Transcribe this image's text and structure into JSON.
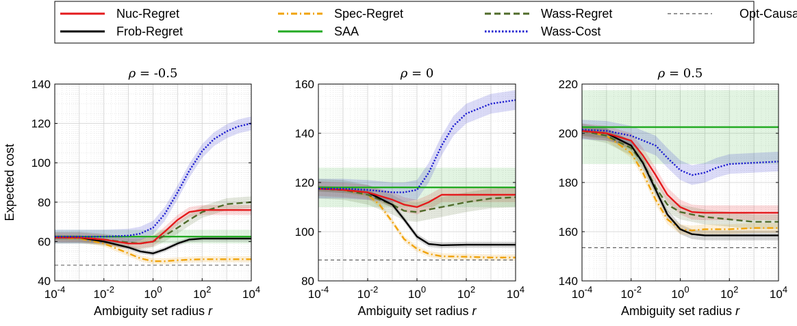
{
  "chart_data": {
    "type": "line",
    "legend": {
      "placement": "top",
      "entries": [
        {
          "name": "Nuc-Regret",
          "color": "#e41a1c",
          "dash": "solid"
        },
        {
          "name": "Spec-Regret",
          "color": "#f0a30a",
          "dash": "dashdot"
        },
        {
          "name": "Wass-Regret",
          "color": "#4f6b2a",
          "dash": "dashed"
        },
        {
          "name": "Opt-Causal",
          "color": "#555555",
          "dash": "thin-dashed"
        },
        {
          "name": "Frob-Regret",
          "color": "#000000",
          "dash": "solid"
        },
        {
          "name": "SAA",
          "color": "#22aa22",
          "dash": "solid"
        },
        {
          "name": "Wass-Cost",
          "color": "#1f1fd0",
          "dash": "dotted"
        }
      ]
    },
    "xlabel": "Ambiguity set radius r",
    "ylabel": "Expected cost",
    "x_scale": "log",
    "xlim": [
      0.0001,
      10000
    ],
    "x_ticks": [
      "10-4",
      "10-2",
      "100",
      "102",
      "104"
    ],
    "grid": true,
    "panels": [
      {
        "title": "ρ = -0.5",
        "ylim": [
          40,
          140
        ],
        "y_ticks": [
          40,
          60,
          80,
          100,
          120,
          140
        ],
        "series": [
          {
            "name": "Nuc-Regret",
            "x": [
              0.0001,
              0.001,
              0.01,
              0.1,
              0.3,
              1,
              3,
              10,
              30,
              100,
              1000,
              10000
            ],
            "y": [
              62,
              62,
              61,
              59,
              59,
              60,
              65,
              71,
              75,
              76,
              76,
              76
            ],
            "band": 2.5
          },
          {
            "name": "Frob-Regret",
            "x": [
              0.0001,
              0.001,
              0.01,
              0.1,
              0.3,
              1,
              3,
              10,
              30,
              100,
              1000,
              10000
            ],
            "y": [
              62,
              62,
              60,
              57,
              55,
              54,
              56,
              59,
              61,
              61.5,
              61.5,
              61.5
            ],
            "band": 1.2
          },
          {
            "name": "Spec-Regret",
            "x": [
              0.0001,
              0.001,
              0.01,
              0.1,
              0.3,
              1,
              3,
              10,
              30,
              100,
              1000,
              10000
            ],
            "y": [
              62,
              61.5,
              59,
              54,
              51.5,
              50,
              50,
              50.5,
              50.8,
              51,
              51,
              51
            ],
            "band": 1.5
          },
          {
            "name": "SAA",
            "x": [
              0.0001,
              10000
            ],
            "y": [
              62.5,
              62.5
            ],
            "band": 3.5
          },
          {
            "name": "Wass-Regret",
            "x": [
              0.0001,
              0.001,
              0.01,
              0.1,
              0.3,
              1,
              3,
              10,
              30,
              100,
              1000,
              10000
            ],
            "y": [
              62,
              62,
              61,
              59.5,
              59,
              60,
              63,
              67,
              71,
              75,
              79,
              80
            ],
            "band": 3
          },
          {
            "name": "Wass-Cost",
            "x": [
              0.0001,
              0.001,
              0.01,
              0.1,
              0.3,
              1,
              3,
              10,
              30,
              100,
              300,
              1000,
              3000,
              10000
            ],
            "y": [
              62.5,
              62.5,
              62.5,
              63,
              64,
              67,
              74,
              85,
              96,
              106,
              112,
              116,
              118.5,
              120
            ],
            "band": 3.5
          },
          {
            "name": "Opt-Causal",
            "x": [
              0.0001,
              10000
            ],
            "y": [
              48,
              48
            ],
            "band": 0
          }
        ]
      },
      {
        "title": "ρ = 0",
        "ylim": [
          80,
          160
        ],
        "y_ticks": [
          80,
          100,
          120,
          140,
          160
        ],
        "series": [
          {
            "name": "Nuc-Regret",
            "x": [
              0.0001,
              0.001,
              0.01,
              0.1,
              0.3,
              1,
              3,
              10,
              100,
              1000,
              10000
            ],
            "y": [
              117.5,
              117,
              116,
              113,
              111,
              110,
              112,
              115,
              115,
              115,
              115
            ],
            "band": 3
          },
          {
            "name": "Frob-Regret",
            "x": [
              0.0001,
              0.001,
              0.01,
              0.1,
              0.3,
              1,
              3,
              10,
              100,
              1000,
              10000
            ],
            "y": [
              117.5,
              117,
              116,
              111,
              105,
              98,
              95,
              94.5,
              94.7,
              94.7,
              94.7
            ],
            "band": 1.2
          },
          {
            "name": "Spec-Regret",
            "x": [
              0.0001,
              0.001,
              0.01,
              0.03,
              0.1,
              0.3,
              1,
              3,
              10,
              100,
              1000,
              10000
            ],
            "y": [
              117.5,
              117,
              115,
              111,
              104,
              97,
              93,
              91,
              90,
              89.8,
              89.5,
              89.5
            ],
            "band": 1.2
          },
          {
            "name": "SAA",
            "x": [
              0.0001,
              10000
            ],
            "y": [
              118,
              118
            ],
            "band": 8
          },
          {
            "name": "Wass-Regret",
            "x": [
              0.0001,
              0.001,
              0.01,
              0.1,
              0.3,
              1,
              3,
              10,
              100,
              1000,
              10000
            ],
            "y": [
              117.5,
              117,
              115,
              111,
              108.5,
              108,
              109,
              110,
              112,
              113.5,
              114
            ],
            "band": 4
          },
          {
            "name": "Wass-Cost",
            "x": [
              0.0001,
              0.001,
              0.01,
              0.1,
              0.3,
              1,
              3,
              10,
              30,
              100,
              1000,
              10000
            ],
            "y": [
              117.5,
              117.5,
              117,
              116,
              116,
              117,
              124,
              135,
              143,
              148,
              152,
              153.5
            ],
            "band": 4
          },
          {
            "name": "Opt-Causal",
            "x": [
              0.0001,
              10000
            ],
            "y": [
              88.5,
              88.5
            ],
            "band": 0
          }
        ]
      },
      {
        "title": "ρ = 0.5",
        "ylim": [
          140,
          220
        ],
        "y_ticks": [
          140,
          160,
          180,
          200,
          220
        ],
        "series": [
          {
            "name": "Nuc-Regret",
            "x": [
              0.0001,
              0.001,
              0.01,
              0.03,
              0.1,
              0.3,
              1,
              3,
              10,
              100,
              1000,
              10000
            ],
            "y": [
              201,
              200,
              197,
              191,
              183,
              175,
              170,
              168,
              167.7,
              167.7,
              167.7,
              167.7
            ],
            "band": 3
          },
          {
            "name": "Frob-Regret",
            "x": [
              0.0001,
              0.001,
              0.01,
              0.03,
              0.1,
              0.3,
              1,
              3,
              10,
              100,
              1000,
              10000
            ],
            "y": [
              201,
              200,
              195,
              188,
              177,
              167,
              161,
              159,
              158.5,
              158.5,
              158.5,
              158.5
            ],
            "band": 2
          },
          {
            "name": "Spec-Regret",
            "x": [
              0.0001,
              0.001,
              0.01,
              0.03,
              0.1,
              0.3,
              1,
              3,
              10,
              100,
              1000,
              10000
            ],
            "y": [
              201,
              199,
              192,
              184,
              173,
              165,
              161,
              160.5,
              161,
              161,
              161.5,
              161.5
            ],
            "band": 2
          },
          {
            "name": "SAA",
            "x": [
              0.0001,
              10000
            ],
            "y": [
              202.5,
              202.5
            ],
            "band": 15
          },
          {
            "name": "Wass-Regret",
            "x": [
              0.0001,
              0.001,
              0.01,
              0.03,
              0.1,
              0.3,
              1,
              3,
              10,
              100,
              1000,
              10000
            ],
            "y": [
              201,
              199,
              194,
              188,
              178,
              171,
              168,
              167,
              166,
              165,
              164,
              164
            ],
            "band": 3
          },
          {
            "name": "Wass-Cost",
            "x": [
              0.0001,
              0.001,
              0.01,
              0.1,
              0.3,
              1,
              3,
              10,
              30,
              100,
              1000,
              10000
            ],
            "y": [
              201.5,
              201,
              199,
              195,
              190,
              185,
              183,
              184,
              186,
              187.5,
              188,
              188.5
            ],
            "band": 4
          },
          {
            "name": "Opt-Causal",
            "x": [
              0.0001,
              10000
            ],
            "y": [
              153.5,
              153.5
            ],
            "band": 0
          }
        ]
      }
    ]
  }
}
